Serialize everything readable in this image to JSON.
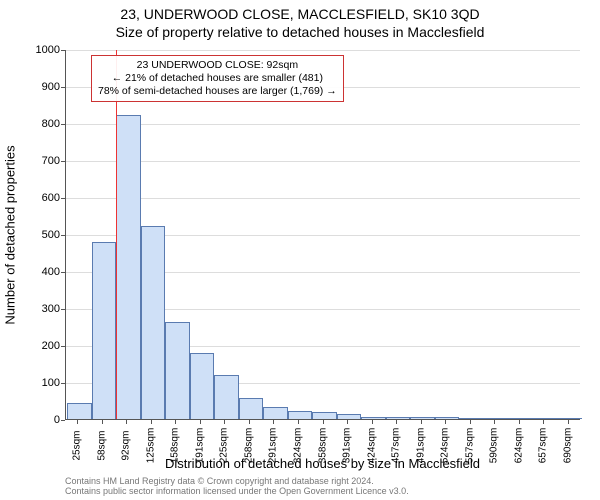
{
  "header": {
    "address": "23, UNDERWOOD CLOSE, MACCLESFIELD, SK10 3QD",
    "subtitle": "Size of property relative to detached houses in Macclesfield"
  },
  "chart": {
    "type": "histogram",
    "ylabel": "Number of detached properties",
    "xlabel": "Distribution of detached houses by size in Macclesfield",
    "ylim": [
      0,
      1000
    ],
    "ytick_step": 100,
    "yticks": [
      0,
      100,
      200,
      300,
      400,
      500,
      600,
      700,
      800,
      900,
      1000
    ],
    "xticks": [
      "25sqm",
      "58sqm",
      "92sqm",
      "125sqm",
      "158sqm",
      "191sqm",
      "225sqm",
      "258sqm",
      "291sqm",
      "324sqm",
      "358sqm",
      "391sqm",
      "424sqm",
      "457sqm",
      "491sqm",
      "524sqm",
      "557sqm",
      "590sqm",
      "624sqm",
      "657sqm",
      "690sqm"
    ],
    "bar_values": [
      40,
      475,
      820,
      520,
      260,
      175,
      115,
      55,
      30,
      20,
      15,
      12,
      2,
      3,
      2,
      2,
      1,
      1,
      1,
      0,
      1
    ],
    "bar_fill": "#cfe0f7",
    "bar_stroke": "#5a7bb0",
    "grid_color": "#dddddd",
    "background_color": "#ffffff",
    "axis_color": "#555555",
    "tick_fontsize": 11,
    "label_fontsize": 13,
    "title_fontsize": 14,
    "highlight": {
      "index": 2,
      "color": "#ee3333"
    },
    "bar_width_ratio": 0.92
  },
  "annotation": {
    "line1": "23 UNDERWOOD CLOSE: 92sqm",
    "line2": "← 21% of detached houses are smaller (481)",
    "line3": "78% of semi-detached houses are larger (1,769) →",
    "border_color": "#cc3333"
  },
  "attribution": {
    "line1": "Contains HM Land Registry data © Crown copyright and database right 2024.",
    "line2": "Contains public sector information licensed under the Open Government Licence v3.0."
  }
}
